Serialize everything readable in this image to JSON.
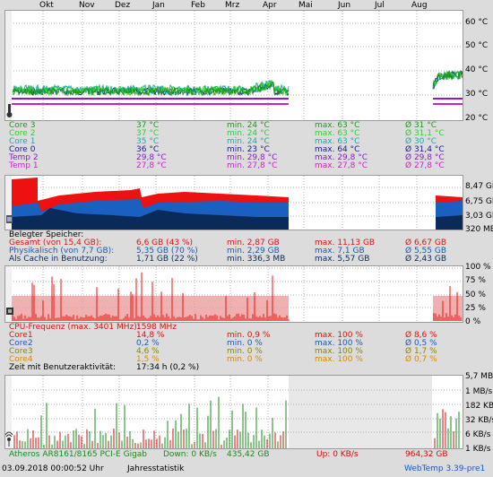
{
  "months": [
    "Okt",
    "Nov",
    "Dez",
    "Jan",
    "Feb",
    "Mrz",
    "Apr",
    "Mai",
    "Jun",
    "Jul",
    "Aug"
  ],
  "temp_axis": [
    "60 °C",
    "50 °C",
    "40 °C",
    "30 °C",
    "20 °C"
  ],
  "mem_axis": [
    "8,47 GB",
    "6,75 GB",
    "3,03 GB",
    "320 MB"
  ],
  "cpu_axis": [
    "100 %",
    "75 %",
    "50 %",
    "25 %",
    "0 %"
  ],
  "net_axis": [
    "5,7 MB/s",
    "1 MB/s",
    "182 KB/s",
    "32 KB/s",
    "6 KB/s",
    "1 KB/s"
  ],
  "temps": [
    {
      "name": "Core 3",
      "cur": "37 °C",
      "min": "min. 24 °C",
      "max": "max. 63 °C",
      "avg": "Ø 31 °C",
      "color": "#1a9a1a"
    },
    {
      "name": "Core 2",
      "cur": "37 °C",
      "min": "min. 24 °C",
      "max": "max. 63 °C",
      "avg": "Ø 31,1 °C",
      "color": "#33cc33"
    },
    {
      "name": "Core 1",
      "cur": "35 °C",
      "min": "min. 24 °C",
      "max": "max. 63 °C",
      "avg": "Ø 30 °C",
      "color": "#1aaaaa"
    },
    {
      "name": "Core 0",
      "cur": "36 °C",
      "min": "min. 23 °C",
      "max": "max. 64 °C",
      "avg": "Ø 31,4 °C",
      "color": "#1a1a8a"
    },
    {
      "name": "Temp 2",
      "cur": "29,8 °C",
      "min": "min. 29,8 °C",
      "max": "max. 29,8 °C",
      "avg": "Ø 29,8 °C",
      "color": "#8a1acc"
    },
    {
      "name": "Temp 1",
      "cur": "27,8 °C",
      "min": "min. 27,8 °C",
      "max": "max. 27,8 °C",
      "avg": "Ø 27,8 °C",
      "color": "#cc22cc"
    }
  ],
  "memory": {
    "heading": "Belegter Speicher:",
    "rows": [
      {
        "name": "Gesamt (von 15,4 GB):",
        "cur": "6,6 GB (43 %)",
        "min": "min. 2,87 GB",
        "max": "max. 11,13 GB",
        "avg": "Ø 6,67 GB",
        "color": "#dd1111"
      },
      {
        "name": "Physikalisch (von 7,7 GB):",
        "cur": "5,35 GB (70 %)",
        "min": "min. 2,29 GB",
        "max": "max. 7,1 GB",
        "avg": "Ø 5,55 GB",
        "color": "#1a5ab0"
      },
      {
        "name": "Als Cache in Benutzung:",
        "cur": "1,71 GB (22 %)",
        "min": "min. 336,3 MB",
        "max": "max. 5,57 GB",
        "avg": "Ø 2,43 GB",
        "color": "#0a2a5a"
      }
    ]
  },
  "cpu": {
    "freq_label": "CPU-Frequenz (max. 3401 MHz):",
    "freq_value": "1598 MHz",
    "rows": [
      {
        "name": "Core1",
        "cur": "14,8 %",
        "min": "min. 0,9 %",
        "max": "max. 100 %",
        "avg": "Ø 8,6 %",
        "color": "#dd1111"
      },
      {
        "name": "Core2",
        "cur": "0,2 %",
        "min": "min. 0 %",
        "max": "max. 100 %",
        "avg": "Ø 0,5 %",
        "color": "#1a5ab0"
      },
      {
        "name": "Core3",
        "cur": "4,6 %",
        "min": "min. 0 %",
        "max": "max. 100 %",
        "avg": "Ø 1,7 %",
        "color": "#888800"
      },
      {
        "name": "Core4",
        "cur": "1,5 %",
        "min": "min. 0 %",
        "max": "max. 100 %",
        "avg": "Ø 0,7 %",
        "color": "#dd8800"
      }
    ],
    "activity_label": "Zeit mit Benutzeraktivität:",
    "activity_value": "17:34 h (0,2 %)"
  },
  "network": {
    "adapter": "Atheros AR8161/8165 PCI-E Gigab",
    "down": "Down: 0 KB/s",
    "down_total": "435,42 GB",
    "up": "Up: 0 KB/s",
    "up_total": "964,32 GB"
  },
  "status": {
    "datetime": "03.09.2018 00:00:52 Uhr",
    "mode": "Jahresstatistik",
    "app": "WebTemp 3.39-pre1"
  },
  "colors": {
    "temp_green": "#2aa02a",
    "temp_blue": "#1a1a9a",
    "temp_purple": "#9a1acc",
    "mem_red": "#ee1111",
    "mem_blue": "#1a60c0",
    "mem_dark": "#0a2a5a",
    "cpu_red": "#ee1111",
    "cpu_fill": "#f0b0b0",
    "net_green": "#1a8a1a",
    "net_red": "#cc1111"
  }
}
